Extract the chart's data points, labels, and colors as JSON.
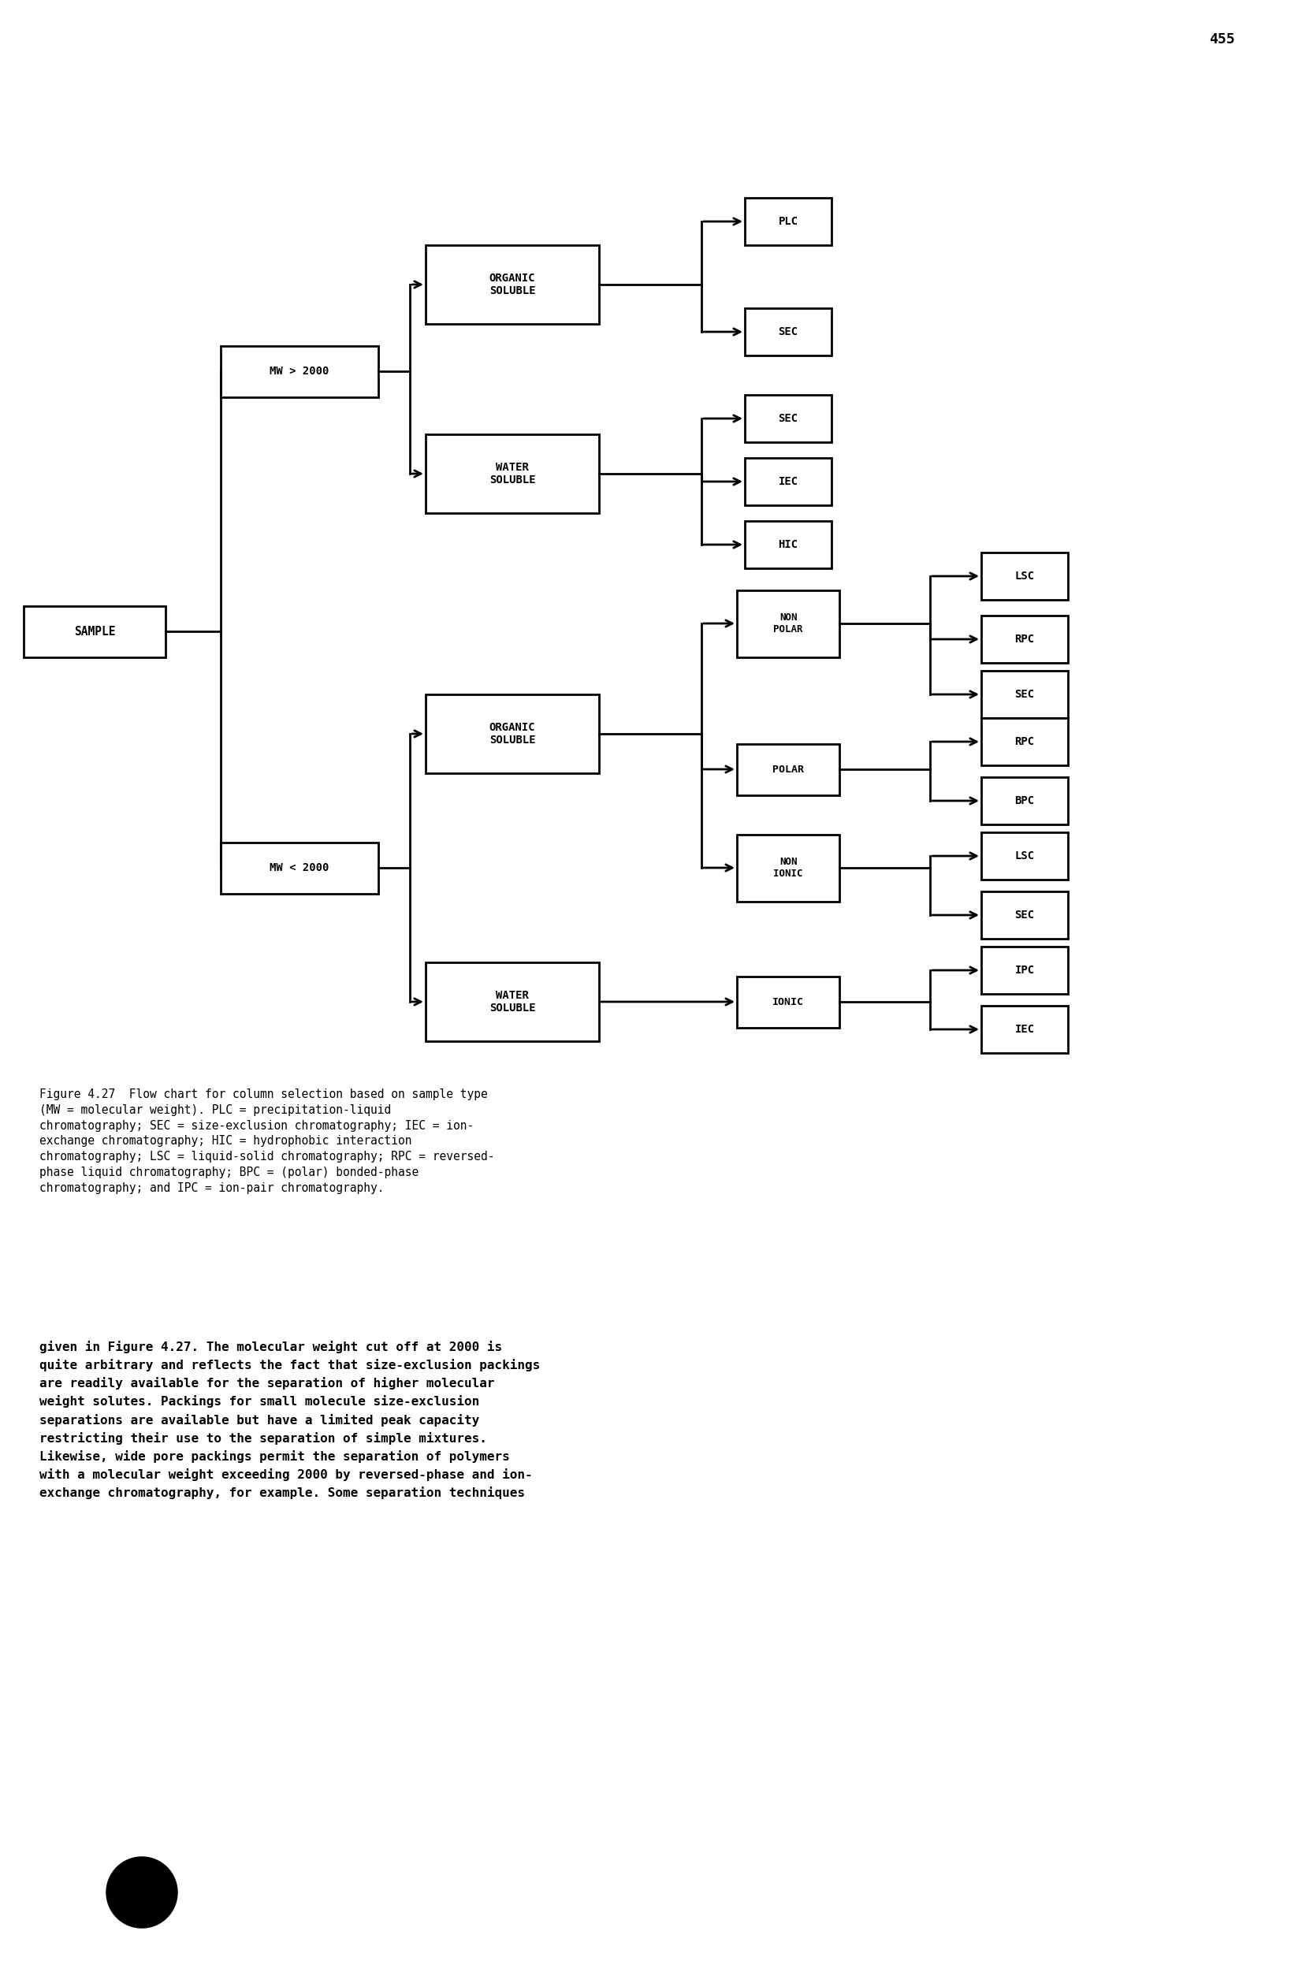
{
  "page_number": "455",
  "caption": "Figure 4.27  Flow chart for column selection based on sample type\n(MW = molecular weight). PLC = precipitation-liquid\nchromatography; SEC = size-exclusion chromatography; IEC = ion-\nexchange chromatography; HIC = hydrophobic interaction\nchromatography; LSC = liquid-solid chromatography; RPC = reversed-\nphase liquid chromatography; BPC = (polar) bonded-phase\nchromatography; and IPC = ion-pair chromatography.",
  "body_text": "given in Figure 4.27. The molecular weight cut off at 2000 is\nquite arbitrary and reflects the fact that size-exclusion packings\nare readily available for the separation of higher molecular\nweight solutes. Packings for small molecule size-exclusion\nseparations are available but have a limited peak capacity\nrestricting their use to the separation of simple mixtures.\nLikewise, wide pore packings permit the separation of polymers\nwith a molecular weight exceeding 2000 by reversed-phase and ion-\nexchange chromatography, for example. Some separation techniques",
  "bg_color": "#ffffff",
  "box_color": "#ffffff",
  "box_edge_color": "#000000",
  "text_color": "#000000",
  "lw": 2.0
}
